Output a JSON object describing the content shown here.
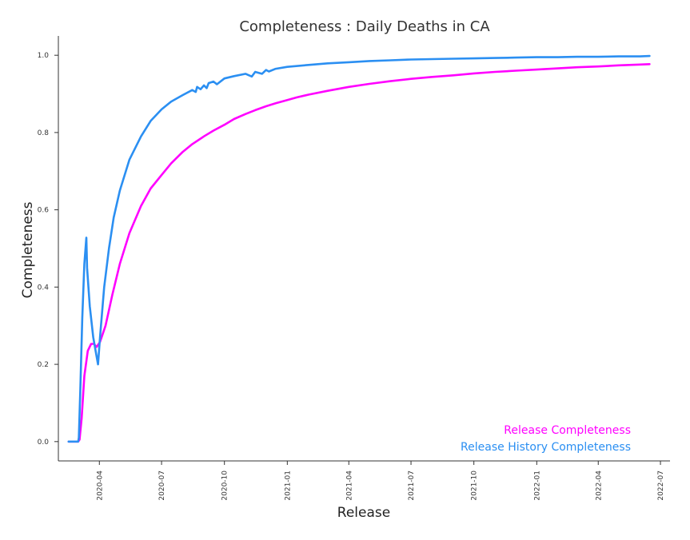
{
  "chart_data": {
    "type": "line",
    "title": "Completeness : Daily Deaths in CA",
    "xlabel": "Release",
    "ylabel": "Completeness",
    "xlim": [
      "2020-02-01",
      "2022-07-15"
    ],
    "ylim": [
      -0.05,
      1.05
    ],
    "x_ticks": [
      "2020-04",
      "2020-07",
      "2020-10",
      "2021-01",
      "2021-04",
      "2021-07",
      "2021-10",
      "2022-01",
      "2022-04",
      "2022-07"
    ],
    "y_ticks": [
      "0.0",
      "0.2",
      "0.4",
      "0.6",
      "0.8",
      "1.0"
    ],
    "grid": false,
    "legend_position": "bottom-right",
    "series": [
      {
        "name": "Release Completeness",
        "color": "#ff00ff",
        "points": [
          [
            "2020-02-16",
            0.0
          ],
          [
            "2020-03-01",
            0.0
          ],
          [
            "2020-03-03",
            0.005
          ],
          [
            "2020-03-06",
            0.06
          ],
          [
            "2020-03-10",
            0.17
          ],
          [
            "2020-03-15",
            0.235
          ],
          [
            "2020-03-20",
            0.253
          ],
          [
            "2020-03-24",
            0.253
          ],
          [
            "2020-03-28",
            0.245
          ],
          [
            "2020-04-02",
            0.258
          ],
          [
            "2020-04-10",
            0.3
          ],
          [
            "2020-04-20",
            0.38
          ],
          [
            "2020-05-01",
            0.46
          ],
          [
            "2020-05-15",
            0.54
          ],
          [
            "2020-06-01",
            0.61
          ],
          [
            "2020-06-15",
            0.655
          ],
          [
            "2020-07-01",
            0.69
          ],
          [
            "2020-07-15",
            0.72
          ],
          [
            "2020-08-01",
            0.75
          ],
          [
            "2020-08-15",
            0.77
          ],
          [
            "2020-09-01",
            0.79
          ],
          [
            "2020-09-15",
            0.805
          ],
          [
            "2020-10-01",
            0.82
          ],
          [
            "2020-10-15",
            0.835
          ],
          [
            "2020-11-01",
            0.848
          ],
          [
            "2020-11-15",
            0.858
          ],
          [
            "2020-12-01",
            0.868
          ],
          [
            "2020-12-15",
            0.876
          ],
          [
            "2021-01-01",
            0.884
          ],
          [
            "2021-01-15",
            0.891
          ],
          [
            "2021-02-01",
            0.898
          ],
          [
            "2021-03-01",
            0.908
          ],
          [
            "2021-04-01",
            0.918
          ],
          [
            "2021-05-01",
            0.926
          ],
          [
            "2021-06-01",
            0.933
          ],
          [
            "2021-07-01",
            0.939
          ],
          [
            "2021-08-01",
            0.944
          ],
          [
            "2021-09-01",
            0.948
          ],
          [
            "2021-10-01",
            0.953
          ],
          [
            "2021-11-01",
            0.957
          ],
          [
            "2021-12-01",
            0.96
          ],
          [
            "2022-01-01",
            0.963
          ],
          [
            "2022-02-01",
            0.966
          ],
          [
            "2022-03-01",
            0.969
          ],
          [
            "2022-04-01",
            0.971
          ],
          [
            "2022-05-01",
            0.974
          ],
          [
            "2022-06-01",
            0.976
          ],
          [
            "2022-06-15",
            0.977
          ]
        ]
      },
      {
        "name": "Release History Completeness",
        "color": "#2b8ff2",
        "points": [
          [
            "2020-02-16",
            0.0
          ],
          [
            "2020-03-01",
            0.0
          ],
          [
            "2020-03-02",
            0.01
          ],
          [
            "2020-03-04",
            0.13
          ],
          [
            "2020-03-07",
            0.32
          ],
          [
            "2020-03-10",
            0.46
          ],
          [
            "2020-03-13",
            0.528
          ],
          [
            "2020-03-14",
            0.45
          ],
          [
            "2020-03-18",
            0.35
          ],
          [
            "2020-03-23",
            0.27
          ],
          [
            "2020-03-27",
            0.23
          ],
          [
            "2020-03-30",
            0.2
          ],
          [
            "2020-04-02",
            0.27
          ],
          [
            "2020-04-08",
            0.4
          ],
          [
            "2020-04-15",
            0.5
          ],
          [
            "2020-04-22",
            0.58
          ],
          [
            "2020-05-01",
            0.65
          ],
          [
            "2020-05-15",
            0.73
          ],
          [
            "2020-06-01",
            0.79
          ],
          [
            "2020-06-15",
            0.83
          ],
          [
            "2020-07-01",
            0.86
          ],
          [
            "2020-07-15",
            0.88
          ],
          [
            "2020-08-01",
            0.897
          ],
          [
            "2020-08-15",
            0.91
          ],
          [
            "2020-08-20",
            0.905
          ],
          [
            "2020-08-22",
            0.918
          ],
          [
            "2020-08-27",
            0.912
          ],
          [
            "2020-09-01",
            0.922
          ],
          [
            "2020-09-05",
            0.915
          ],
          [
            "2020-09-08",
            0.928
          ],
          [
            "2020-09-15",
            0.932
          ],
          [
            "2020-09-20",
            0.925
          ],
          [
            "2020-10-01",
            0.94
          ],
          [
            "2020-10-15",
            0.946
          ],
          [
            "2020-11-01",
            0.952
          ],
          [
            "2020-11-10",
            0.945
          ],
          [
            "2020-11-15",
            0.957
          ],
          [
            "2020-11-25",
            0.952
          ],
          [
            "2020-12-01",
            0.962
          ],
          [
            "2020-12-05",
            0.958
          ],
          [
            "2020-12-15",
            0.965
          ],
          [
            "2021-01-01",
            0.97
          ],
          [
            "2021-02-01",
            0.975
          ],
          [
            "2021-03-01",
            0.979
          ],
          [
            "2021-04-01",
            0.982
          ],
          [
            "2021-05-01",
            0.985
          ],
          [
            "2021-06-01",
            0.987
          ],
          [
            "2021-07-01",
            0.989
          ],
          [
            "2021-08-01",
            0.99
          ],
          [
            "2021-09-01",
            0.991
          ],
          [
            "2021-10-01",
            0.992
          ],
          [
            "2021-11-01",
            0.993
          ],
          [
            "2021-12-01",
            0.994
          ],
          [
            "2022-01-01",
            0.995
          ],
          [
            "2022-02-01",
            0.995
          ],
          [
            "2022-03-01",
            0.996
          ],
          [
            "2022-04-01",
            0.996
          ],
          [
            "2022-05-01",
            0.997
          ],
          [
            "2022-06-01",
            0.997
          ],
          [
            "2022-06-15",
            0.998
          ]
        ]
      }
    ]
  }
}
